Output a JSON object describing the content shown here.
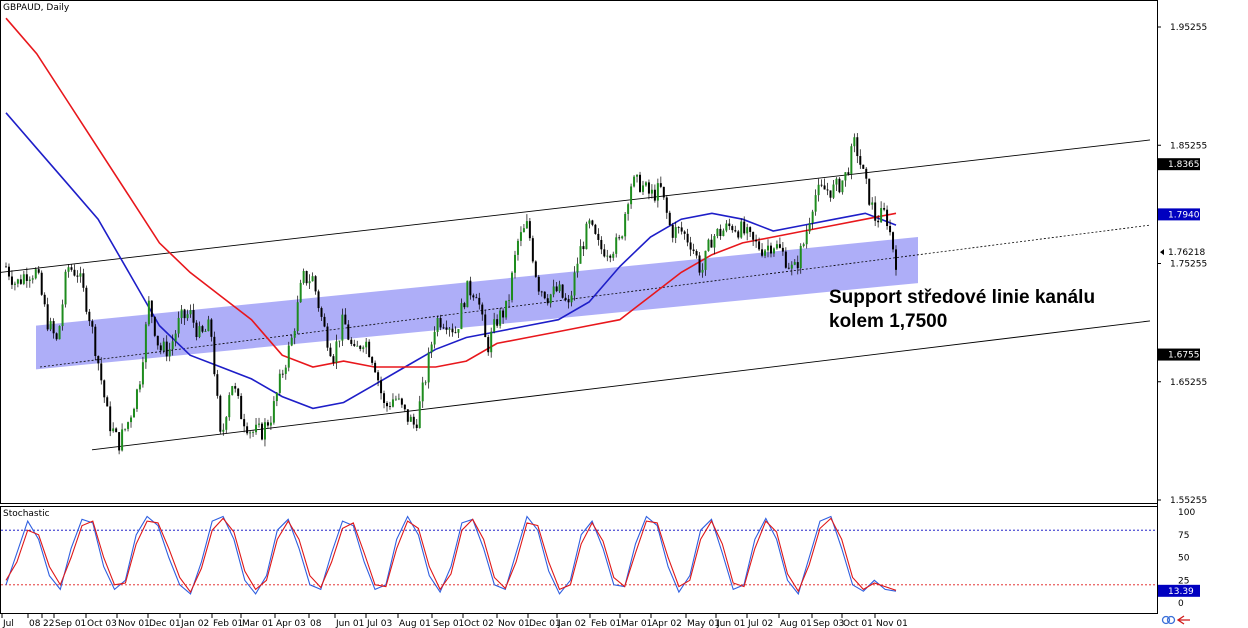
{
  "header": {
    "symbol_label": "GBPAUD, Daily"
  },
  "stochastic_label": "Stochastic",
  "annotation": {
    "line1": "Support středové linie kanálu",
    "line2": "kolem 1,7500"
  },
  "colors": {
    "ma_slow": "#e8171c",
    "ma_fast": "#1e1ec8",
    "zone_fill": "#8c8cf5",
    "candle_bull": "#1e8c1e",
    "candle_bear": "#000000",
    "stoch_main": "#2f5fe0",
    "stoch_signal": "#e01818",
    "level_high": "#0000c0",
    "level_low": "#e01818"
  },
  "chart_data": [
    {
      "type": "candlestick",
      "title": "GBPAUD, Daily",
      "ylim": [
        1.525,
        1.97
      ],
      "y_ticks": [
        "1.95255",
        "1.85255",
        "1.75255",
        "1.65255",
        "1.55255"
      ],
      "price_labels": [
        {
          "value": "1.83653",
          "price": 1.83653,
          "style": "dark"
        },
        {
          "value": "1.79408",
          "price": 1.79408,
          "style": "blue"
        },
        {
          "value": "1.76218",
          "price": 1.76218,
          "style": "plain"
        },
        {
          "value": "1.67555",
          "price": 1.67555,
          "style": "dark"
        }
      ],
      "x_ticks": [
        "Jul",
        "08",
        "22",
        "Sep 01",
        "Oct 03",
        "Nov 01",
        "Dec 01",
        "Jan 02",
        "Feb 01",
        "Mar 01",
        "Apr 03",
        "08",
        "Jun 01",
        "Jul 03",
        "Aug 01",
        "Sep 01",
        "Oct 02",
        "Nov 01",
        "Dec 01",
        "Jan 02",
        "Feb 01",
        "Mar 01",
        "Apr 02",
        "May 01",
        "Jun 01",
        "Jul 02",
        "Aug 01",
        "Sep 03",
        "Oct 01",
        "Nov 01"
      ],
      "series": [
        {
          "name": "Close",
          "values": [
            1.75,
            1.735,
            1.745,
            1.745,
            1.705,
            1.685,
            1.75,
            1.745,
            1.715,
            1.67,
            1.62,
            1.6,
            1.62,
            1.65,
            1.72,
            1.68,
            1.68,
            1.705,
            1.71,
            1.69,
            1.7,
            1.6,
            1.655,
            1.625,
            1.61,
            1.61,
            1.625,
            1.66,
            1.69,
            1.74,
            1.74,
            1.7,
            1.675,
            1.705,
            1.675,
            1.69,
            1.67,
            1.63,
            1.64,
            1.625,
            1.615,
            1.655,
            1.705,
            1.705,
            1.695,
            1.73,
            1.73,
            1.68,
            1.705,
            1.715,
            1.77,
            1.785,
            1.735,
            1.725,
            1.73,
            1.715,
            1.76,
            1.785,
            1.765,
            1.765,
            1.77,
            1.82,
            1.82,
            1.81,
            1.815,
            1.78,
            1.78,
            1.77,
            1.745,
            1.775,
            1.78,
            1.785,
            1.78,
            1.77,
            1.765,
            1.77,
            1.76,
            1.745,
            1.77,
            1.81,
            1.815,
            1.815,
            1.825,
            1.855,
            1.82,
            1.79,
            1.795,
            1.755
          ]
        },
        {
          "name": "MA fast",
          "values": [
            1.88,
            1.85,
            1.82,
            1.79,
            1.745,
            1.7,
            1.675,
            1.665,
            1.655,
            1.64,
            1.63,
            1.635,
            1.65,
            1.665,
            1.68,
            1.69,
            1.695,
            1.7,
            1.705,
            1.72,
            1.75,
            1.775,
            1.79,
            1.795,
            1.79,
            1.78,
            1.785,
            1.79,
            1.795,
            1.785
          ]
        },
        {
          "name": "MA slow",
          "values": [
            1.96,
            1.93,
            1.89,
            1.85,
            1.81,
            1.77,
            1.745,
            1.725,
            1.705,
            1.675,
            1.665,
            1.67,
            1.665,
            1.665,
            1.665,
            1.67,
            1.685,
            1.69,
            1.695,
            1.7,
            1.705,
            1.725,
            1.745,
            1.76,
            1.77,
            1.775,
            1.78,
            1.785,
            1.79,
            1.795
          ]
        }
      ]
    },
    {
      "type": "line",
      "title": "Stochastic",
      "ylim": [
        0,
        100
      ],
      "y_ticks": [
        "100",
        "75",
        "50",
        "25",
        "0"
      ],
      "levels": [
        80,
        20
      ],
      "current_value": "13.39",
      "series": [
        {
          "name": "%K",
          "values": [
            20,
            55,
            90,
            70,
            30,
            15,
            60,
            92,
            88,
            40,
            15,
            25,
            75,
            95,
            85,
            50,
            20,
            10,
            45,
            90,
            95,
            70,
            25,
            10,
            30,
            80,
            92,
            60,
            20,
            15,
            55,
            90,
            85,
            45,
            15,
            20,
            70,
            95,
            75,
            30,
            12,
            40,
            88,
            92,
            60,
            20,
            15,
            55,
            95,
            80,
            35,
            10,
            25,
            75,
            90,
            60,
            20,
            18,
            65,
            95,
            85,
            40,
            12,
            30,
            80,
            92,
            55,
            15,
            20,
            70,
            93,
            70,
            25,
            10,
            50,
            90,
            95,
            60,
            20,
            13,
            25,
            15,
            13
          ]
        },
        {
          "name": "%D",
          "values": [
            25,
            45,
            80,
            75,
            40,
            20,
            50,
            85,
            90,
            50,
            20,
            22,
            65,
            90,
            88,
            60,
            28,
            12,
            38,
            80,
            93,
            78,
            35,
            15,
            25,
            70,
            90,
            70,
            30,
            17,
            45,
            82,
            88,
            55,
            20,
            18,
            60,
            90,
            82,
            40,
            15,
            32,
            80,
            92,
            70,
            28,
            16,
            45,
            88,
            85,
            45,
            15,
            20,
            65,
            88,
            68,
            28,
            18,
            55,
            90,
            88,
            50,
            18,
            25,
            70,
            90,
            65,
            22,
            18,
            60,
            90,
            78,
            32,
            13,
            42,
            82,
            93,
            70,
            28,
            15,
            22,
            18,
            14
          ]
        }
      ]
    }
  ]
}
